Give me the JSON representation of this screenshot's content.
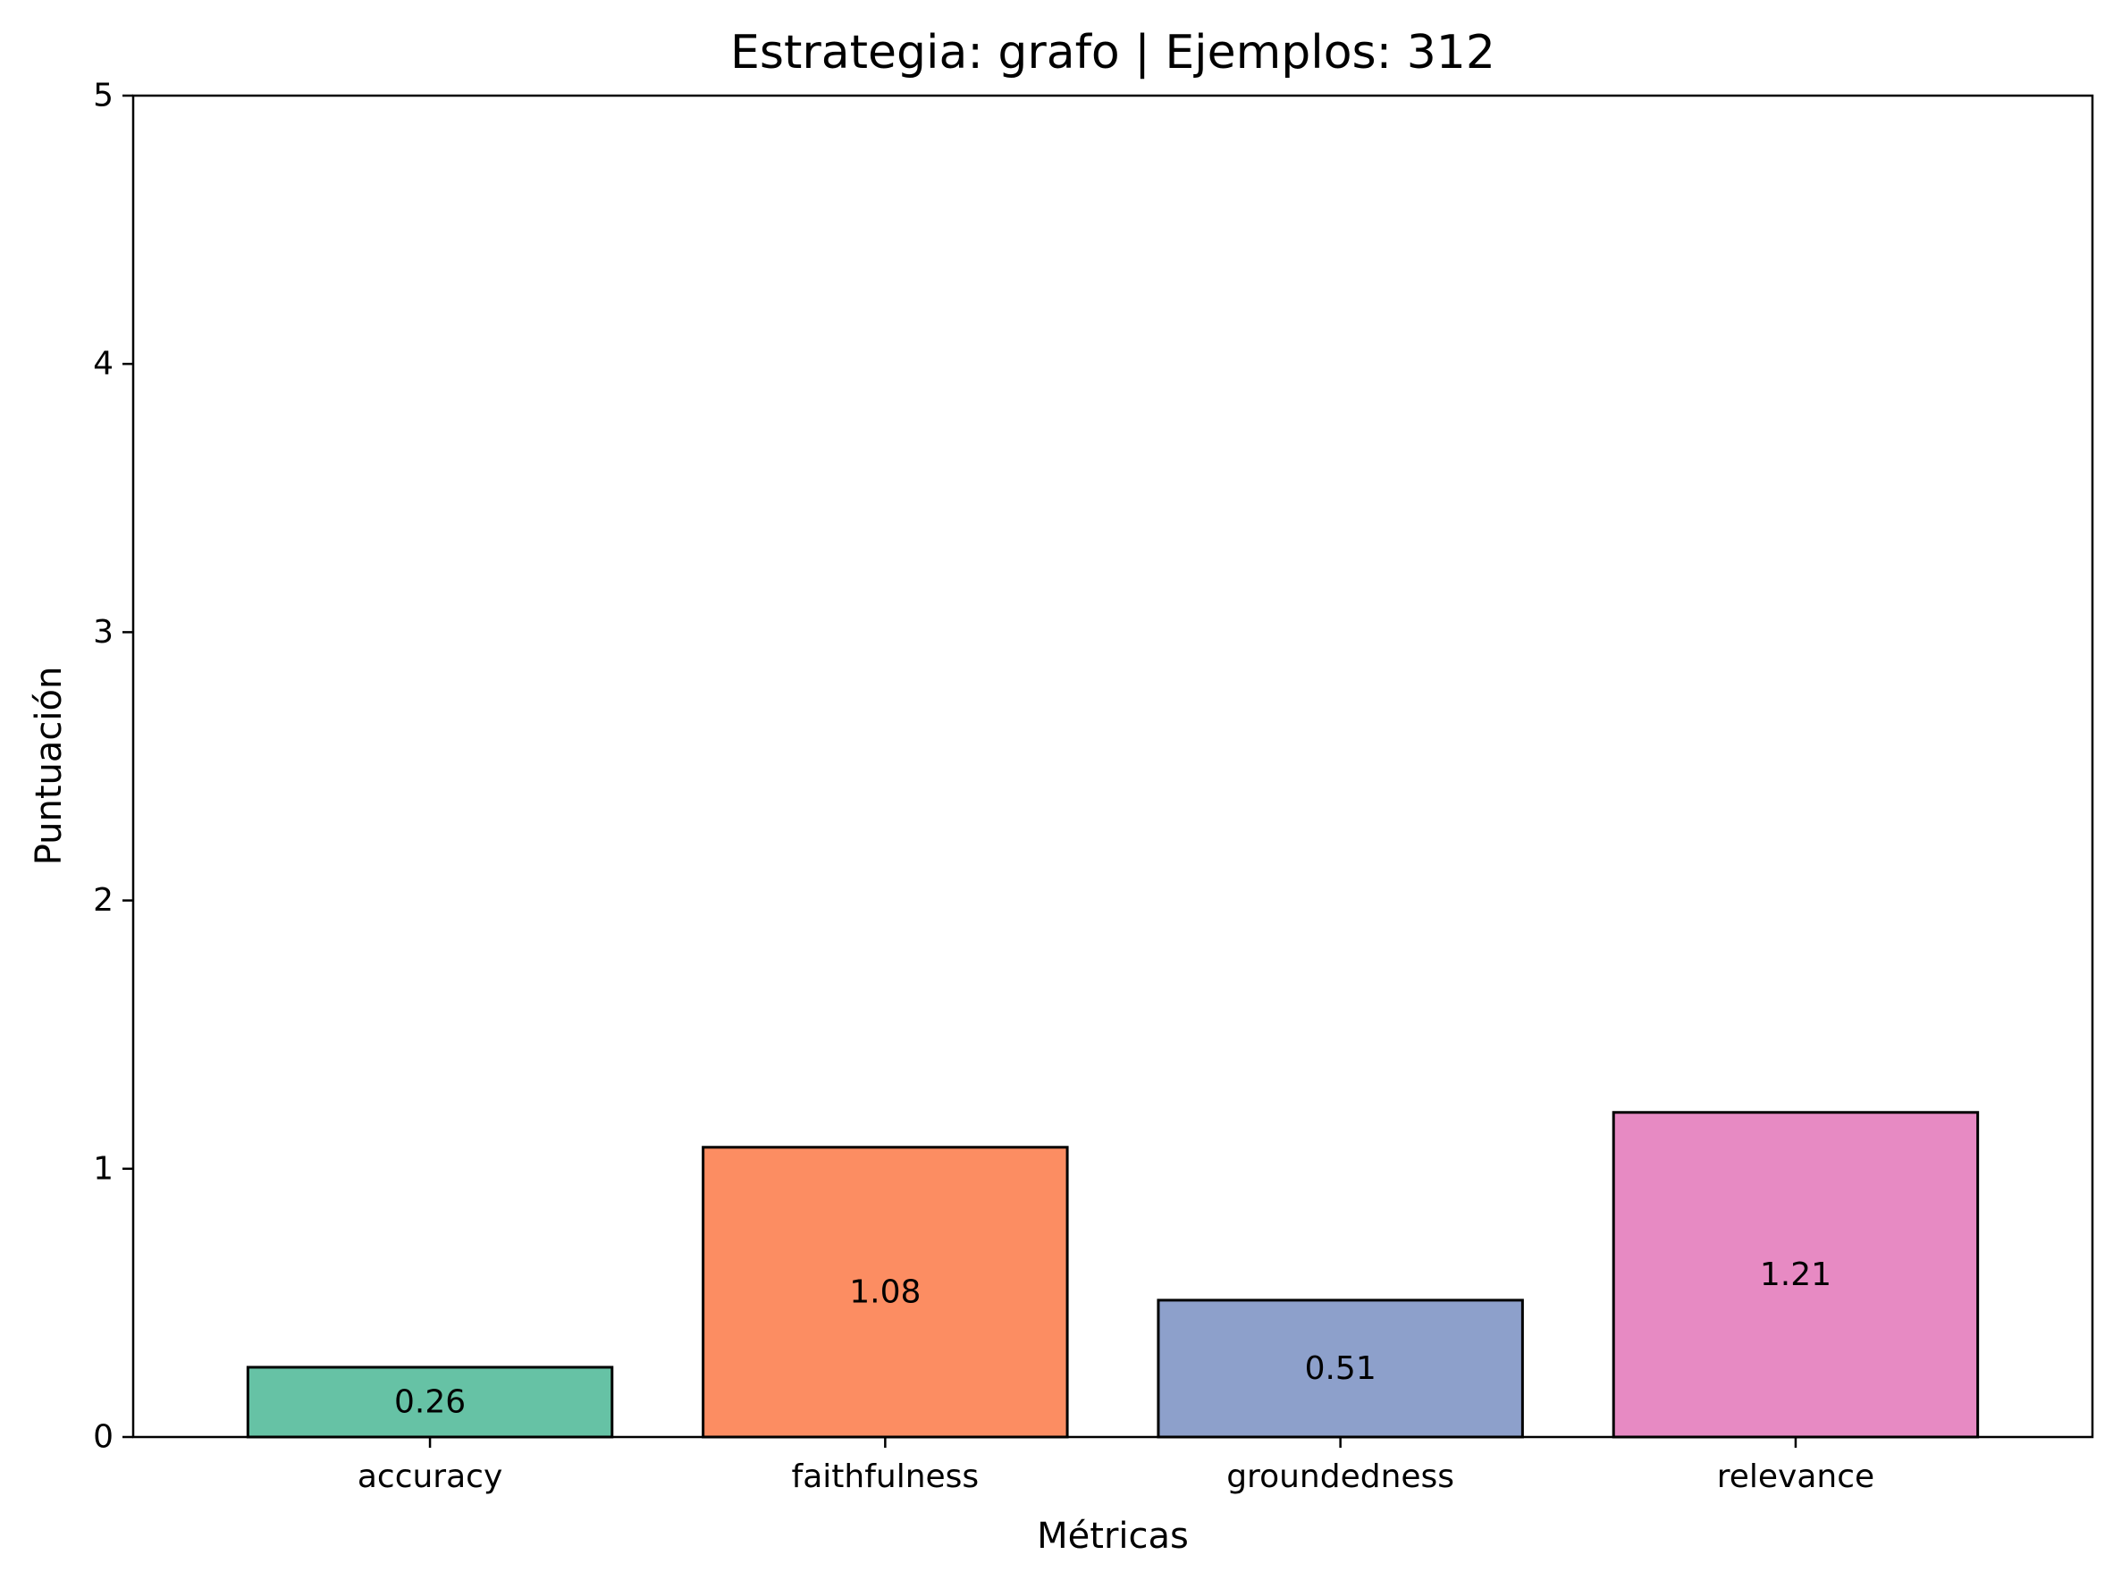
{
  "chart_data": {
    "type": "bar",
    "title": "Estrategia: grafo | Ejemplos: 312",
    "xlabel": "Métricas",
    "ylabel": "Puntuación",
    "categories": [
      "accuracy",
      "faithfulness",
      "groundedness",
      "relevance"
    ],
    "values": [
      0.26,
      1.08,
      0.51,
      1.21
    ],
    "value_labels": [
      "0.26",
      "1.08",
      "0.51",
      "1.21"
    ],
    "colors": [
      "#66c2a5",
      "#fc8d62",
      "#8da0cb",
      "#e78ac3"
    ],
    "ylim": [
      0,
      5
    ],
    "yticks": [
      0,
      1,
      2,
      3,
      4,
      5
    ],
    "ytick_labels": [
      "0",
      "1",
      "2",
      "3",
      "4",
      "5"
    ],
    "grid": false,
    "legend": "none"
  }
}
